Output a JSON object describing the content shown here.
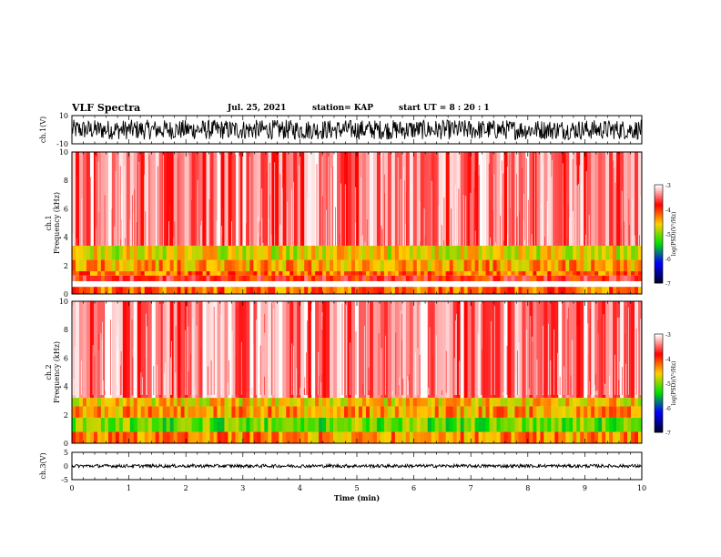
{
  "header": {
    "title": "VLF Spectra",
    "date": "Jul. 25, 2021",
    "station": "station= KAP",
    "start": "start  UT =   8 : 20 : 1"
  },
  "chart_data": {
    "type": "heatmap",
    "x_axis": {
      "label": "Time  (min)",
      "range": [
        0,
        10
      ],
      "ticks": [
        "0",
        "1",
        "2",
        "3",
        "4",
        "5",
        "6",
        "7",
        "8",
        "9",
        "10"
      ]
    },
    "panels": [
      {
        "id": "ch1-waveform",
        "kind": "waveform",
        "ylabel": "ch.1(V)",
        "ylim": [
          -10,
          10
        ],
        "ytick_labels": [
          "10",
          "-10"
        ],
        "amplitude_range": [
          -7,
          7
        ],
        "color": "#000000"
      },
      {
        "id": "ch1-spectrogram",
        "kind": "spectrogram",
        "ylabel": "ch.1\nFrequency (kHz)",
        "ylim": [
          0,
          10
        ],
        "ytick_labels": [
          "0",
          "2",
          "4",
          "6",
          "8",
          "10"
        ],
        "bands": [
          {
            "freq": [
              0,
              0.5
            ],
            "level": -4.2
          },
          {
            "freq": [
              0.9,
              1.3
            ],
            "level": -3.8
          },
          {
            "freq": [
              1.3,
              1.6
            ],
            "level": -4.2
          },
          {
            "freq": [
              1.6,
              2.4
            ],
            "level": -4.4
          },
          {
            "freq": [
              2.4,
              3.4
            ],
            "level": -4.7
          },
          {
            "freq": [
              3.4,
              10
            ],
            "level": -3.4
          }
        ]
      },
      {
        "id": "ch2-spectrogram",
        "kind": "spectrogram",
        "ylabel": "ch.2\nFrequency (kHz)",
        "ylim": [
          0,
          10
        ],
        "ytick_labels": [
          "0",
          "2",
          "4",
          "6",
          "8",
          "10"
        ],
        "bands": [
          {
            "freq": [
              0,
              0.8
            ],
            "level": -4.3
          },
          {
            "freq": [
              0.8,
              1.8
            ],
            "level": -5.1
          },
          {
            "freq": [
              1.8,
              2.6
            ],
            "level": -4.4
          },
          {
            "freq": [
              2.6,
              3.2
            ],
            "level": -4.6
          },
          {
            "freq": [
              3.2,
              10
            ],
            "level": -3.4
          }
        ]
      },
      {
        "id": "ch3-waveform",
        "kind": "waveform",
        "ylabel": "ch.3(V)",
        "ylim": [
          -5,
          5
        ],
        "ytick_labels": [
          "5",
          "0",
          "-5"
        ],
        "amplitude_range": [
          -0.6,
          0.6
        ],
        "color": "#000000"
      }
    ],
    "colorbar": {
      "label": "log(PSD)(V²/Hz)",
      "range": [
        -7,
        -3
      ],
      "tick_labels": [
        "-3",
        "-4",
        "-5",
        "-6",
        "-7"
      ],
      "colors": [
        "#ffffff",
        "#ff0000",
        "#ffd000",
        "#00e000",
        "#0000ff",
        "#000030"
      ]
    }
  }
}
